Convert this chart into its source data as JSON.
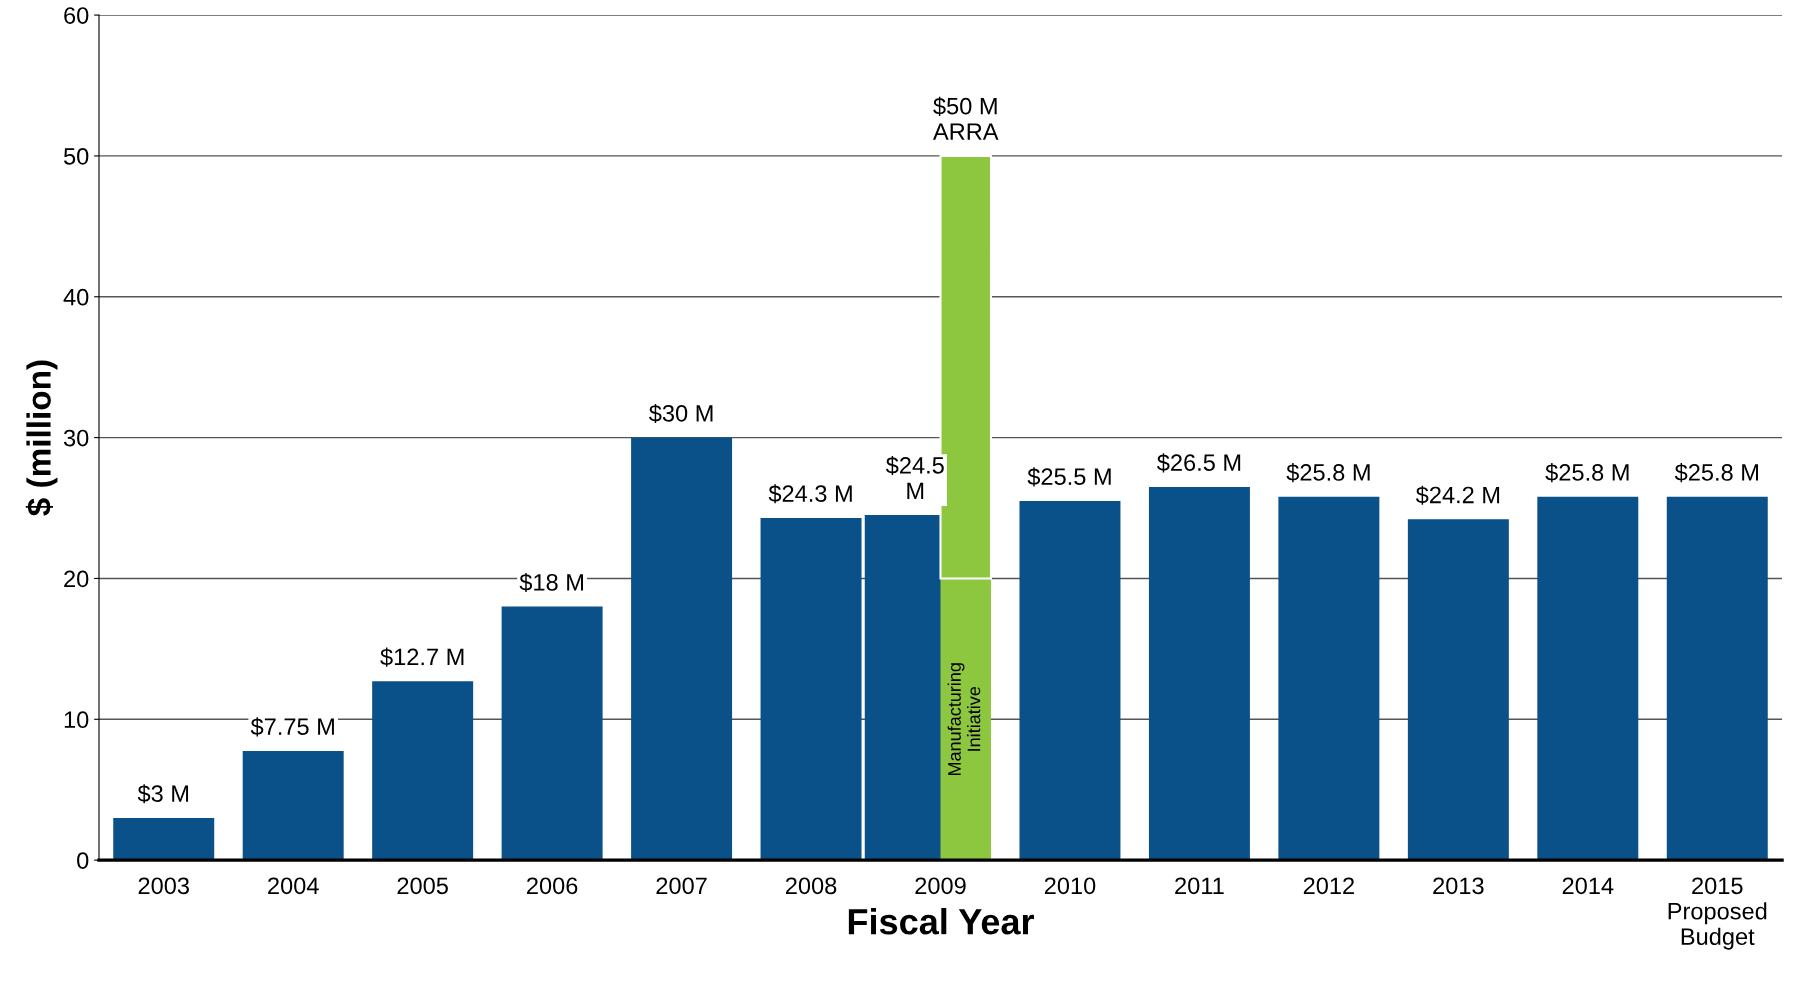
{
  "chart_data": {
    "type": "bar",
    "xlabel": "Fiscal Year",
    "ylabel": "$ (million)",
    "categories": [
      "2003",
      "2004",
      "2005",
      "2006",
      "2007",
      "2008",
      "2009",
      "2010",
      "2011",
      "2012",
      "2013",
      "2014",
      "2015\nProposed\nBudget"
    ],
    "series": [
      {
        "color": "#0a5089",
        "values": [
          3,
          7.75,
          12.7,
          18,
          30,
          24.3,
          24.5,
          25.5,
          26.5,
          25.8,
          24.2,
          25.8,
          25.8
        ],
        "value_labels": [
          "$3 M",
          "$7.75 M",
          "$12.7 M",
          "$18 M",
          "$30 M",
          "$24.3 M",
          "$24.5\nM",
          "$25.5 M",
          "$26.5 M",
          "$25.8 M",
          "$24.2 M",
          "$25.8 M",
          "$25.8 M"
        ]
      },
      {
        "name": "Manufacturing\nInitiative",
        "color": "#8dc63f",
        "base": [
          null,
          null,
          null,
          null,
          null,
          null,
          0,
          null,
          null,
          null,
          null,
          null,
          null
        ],
        "values": [
          null,
          null,
          null,
          null,
          null,
          null,
          20,
          null,
          null,
          null,
          null,
          null,
          null
        ]
      },
      {
        "color": "#8dc63f",
        "base": [
          null,
          null,
          null,
          null,
          null,
          null,
          20,
          null,
          null,
          null,
          null,
          null,
          null
        ],
        "values": [
          null,
          null,
          null,
          null,
          null,
          null,
          30,
          null,
          null,
          null,
          null,
          null,
          null
        ],
        "value_labels": [
          null,
          null,
          null,
          null,
          null,
          null,
          "$50 M\nARRA",
          null,
          null,
          null,
          null,
          null,
          null
        ]
      }
    ],
    "ylim": [
      0,
      60
    ],
    "yticks": [
      0,
      10,
      20,
      30,
      40,
      50,
      60
    ],
    "grid": "y",
    "legend": false
  }
}
